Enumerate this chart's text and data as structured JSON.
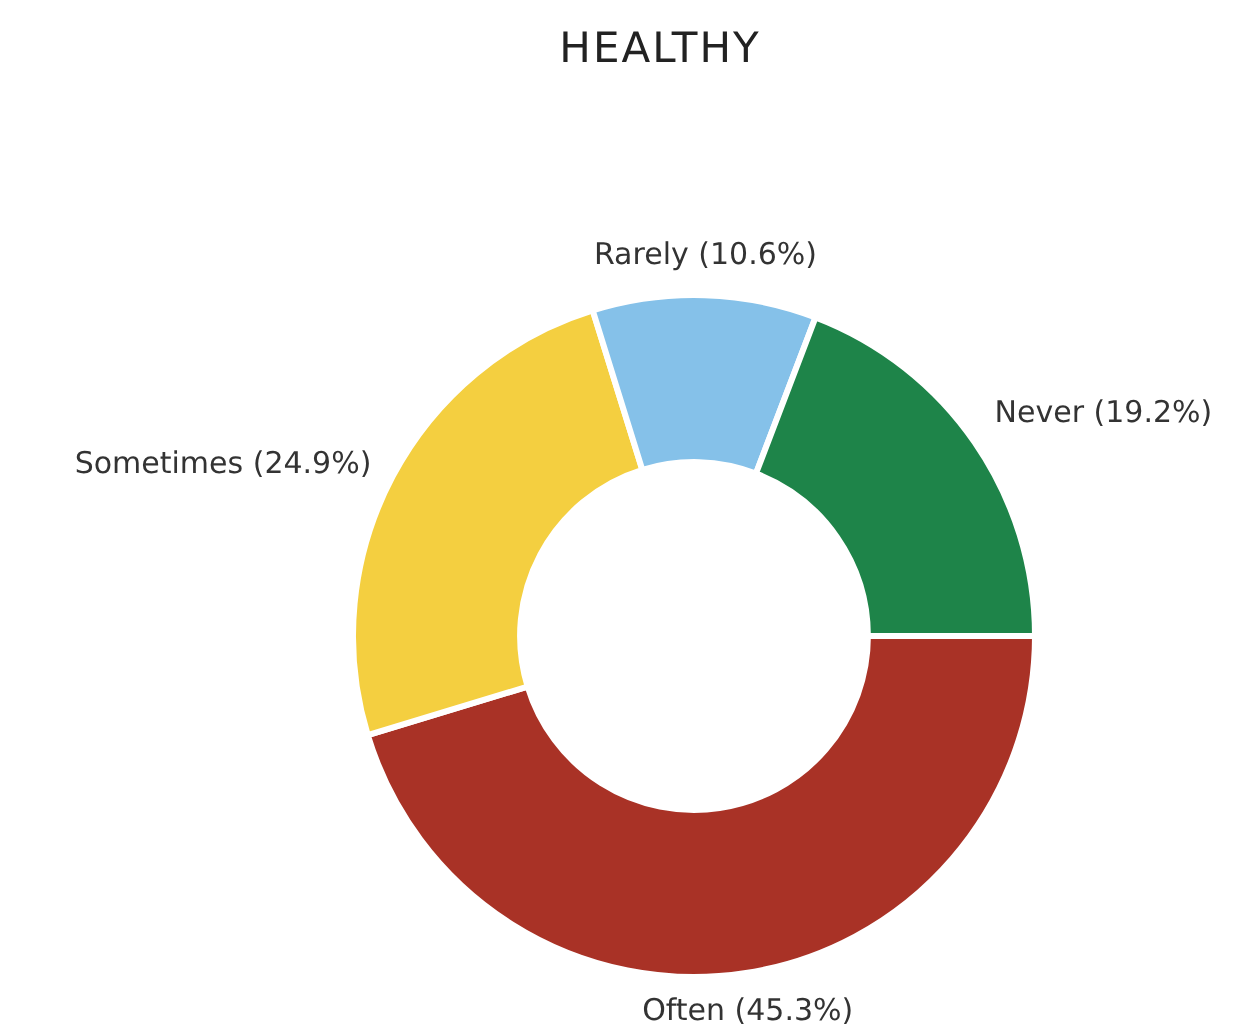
{
  "chart_data": {
    "type": "donut",
    "title": "HEALTHY",
    "categories": [
      "Often",
      "Sometimes",
      "Rarely",
      "Never"
    ],
    "values": [
      45.3,
      24.9,
      10.6,
      19.2
    ],
    "colors": [
      "#a93226",
      "#f4cf40",
      "#85c1e9",
      "#1e8449"
    ],
    "value_labels": [
      "(45.3%)",
      "(24.9%)",
      "(10.6%)",
      "(19.2%)"
    ],
    "legend": false
  }
}
